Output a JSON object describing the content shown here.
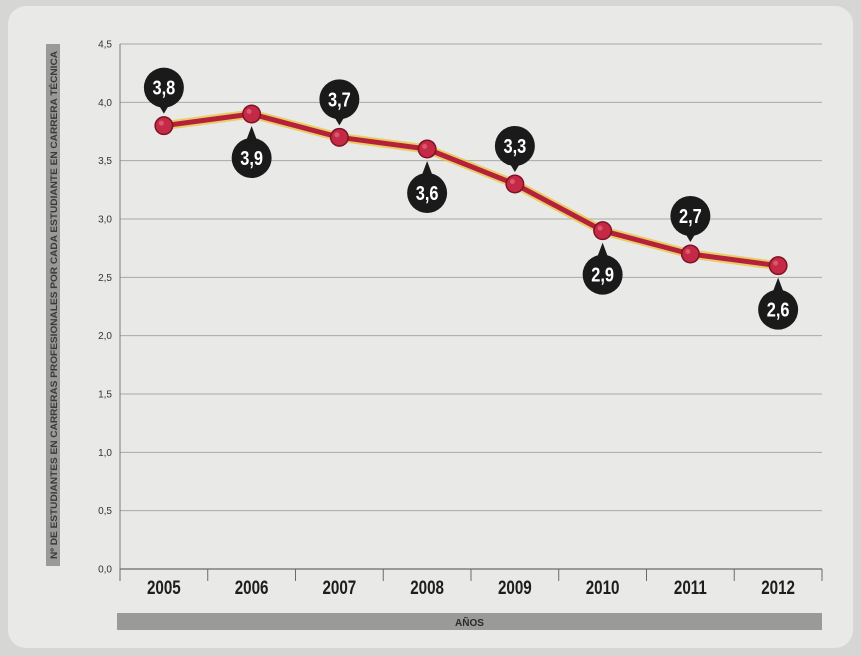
{
  "chart_data": {
    "type": "line",
    "title": "",
    "xlabel": "AÑOS",
    "ylabel": "Nº DE ESTUDIANTES EN CARRERAS PROFESIONALES POR CADA ESTUDIANTE EN CARRERA TÉCNICA",
    "categories": [
      "2005",
      "2006",
      "2007",
      "2008",
      "2009",
      "2010",
      "2011",
      "2012"
    ],
    "series": [
      {
        "values": [
          3.8,
          3.9,
          3.7,
          3.6,
          3.3,
          2.9,
          2.7,
          2.6
        ],
        "data_labels": [
          "3,8",
          "3,9",
          "3,7",
          "3,6",
          "3,3",
          "2,9",
          "2,7",
          "2,6"
        ],
        "label_positions": [
          "above",
          "below",
          "above",
          "below",
          "above",
          "below",
          "above",
          "below"
        ]
      }
    ],
    "yticks": [
      "0,0",
      "0,5",
      "1,0",
      "1,5",
      "2,0",
      "2,5",
      "3,0",
      "3,5",
      "4,0",
      "4,5"
    ],
    "ylim": [
      0,
      4.5
    ],
    "grid": "horizontal",
    "legend": "none",
    "colors": {
      "line": "#b5213a",
      "line_glow": "#e8c23a",
      "marker": "#c42a45",
      "label_bubble": "#1a1a1a",
      "label_text": "#ffffff",
      "axis_band": "#9a9a98"
    }
  }
}
